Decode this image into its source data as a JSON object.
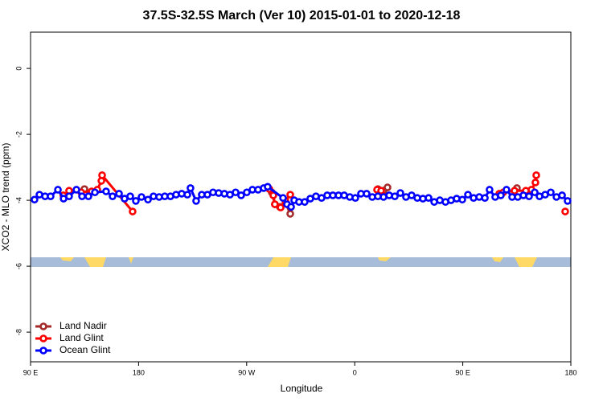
{
  "chart_data": {
    "type": "line",
    "title": "37.5S-32.5S March (Ver 10)   2015-01-01 to 2020-12-18",
    "x_label": "Longitude",
    "y_label": "XCO2 - MLO trend (ppm)",
    "xlim": [
      90,
      540
    ],
    "xticks": [
      {
        "value": 90,
        "label": "90 E"
      },
      {
        "value": 180,
        "label": "180"
      },
      {
        "value": 270,
        "label": "90 W"
      },
      {
        "value": 360,
        "label": "0"
      },
      {
        "value": 450,
        "label": "90 E"
      },
      {
        "value": 540,
        "label": "180"
      }
    ],
    "ylim": [
      -8.9,
      1.1
    ],
    "yticks": [
      0,
      -2,
      -4,
      -6,
      -8
    ],
    "legend": "bottom-left",
    "series": [
      {
        "name": "Land Nadir",
        "color": "#a52a2a",
        "x": [
          134.9,
          null,
          290.9,
          293.5,
          297.6,
          302.3,
          306.3,
          null,
          379.3,
          384.0,
          387.3,
          null,
          495.1
        ],
        "values": [
          -3.66,
          null,
          -3.76,
          -4.12,
          -4.2,
          -4.07,
          -4.41,
          null,
          -3.66,
          -3.71,
          -3.61,
          null,
          -3.63
        ]
      },
      {
        "name": "Land Glint",
        "color": "#ff0000",
        "x": [
          117.3,
          122.1,
          132.2,
          140.9,
          145.6,
          149.0,
          149.6,
          175.0,
          null,
          288.9,
          292.2,
          293.5,
          298.3,
          302.3,
          306.3,
          null,
          378.6,
          382.0,
          null,
          480.4,
          483.7,
          493.1,
          502.5,
          507.2,
          510.5,
          511.2,
          null,
          535.3
        ],
        "values": [
          -3.85,
          -3.71,
          -3.76,
          -3.73,
          -3.68,
          -3.41,
          -3.24,
          -4.34,
          null,
          -3.66,
          -3.85,
          -4.12,
          -4.22,
          -4.02,
          -3.83,
          null,
          -3.68,
          -3.71,
          null,
          -3.8,
          -3.76,
          -3.71,
          -3.71,
          -3.68,
          -3.46,
          -3.24,
          null,
          -4.34
        ]
      },
      {
        "name": "Ocean Glint",
        "color": "#0000ff",
        "x": [
          93.3,
          97.4,
          102.1,
          106.7,
          112.8,
          117.5,
          122.1,
          128.2,
          132.9,
          138.2,
          143.6,
          152.9,
          158.3,
          163.7,
          168.3,
          173.0,
          177.7,
          182.4,
          187.8,
          192.4,
          197.1,
          201.8,
          206.5,
          211.2,
          215.9,
          220.6,
          223.2,
          227.9,
          232.6,
          237.3,
          242.0,
          246.7,
          251.4,
          256.1,
          260.8,
          265.4,
          270.1,
          274.8,
          279.5,
          284.2,
          287.5,
          300.3,
          303.6,
          307.0,
          309.6,
          313.6,
          318.3,
          323.0,
          327.7,
          332.4,
          337.1,
          341.8,
          346.5,
          351.2,
          355.9,
          360.5,
          365.2,
          369.9,
          374.6,
          379.3,
          384.0,
          388.7,
          393.4,
          398.0,
          402.7,
          407.4,
          412.1,
          416.8,
          421.5,
          426.2,
          430.9,
          435.6,
          440.2,
          444.9,
          449.6,
          454.3,
          459.0,
          463.7,
          468.4,
          472.3,
          477.0,
          481.7,
          486.4,
          491.1,
          495.8,
          500.5,
          505.2,
          509.9,
          513.9,
          518.6,
          523.3,
          528.0,
          532.7,
          537.3
        ],
        "values": [
          -3.98,
          -3.83,
          -3.88,
          -3.88,
          -3.68,
          -3.95,
          -3.88,
          -3.68,
          -3.88,
          -3.88,
          -3.76,
          -3.73,
          -3.88,
          -3.8,
          -3.95,
          -3.88,
          -4.02,
          -3.9,
          -3.98,
          -3.88,
          -3.9,
          -3.88,
          -3.88,
          -3.83,
          -3.8,
          -3.83,
          -3.63,
          -4.02,
          -3.83,
          -3.83,
          -3.76,
          -3.78,
          -3.8,
          -3.83,
          -3.76,
          -3.85,
          -3.76,
          -3.68,
          -3.68,
          -3.63,
          -3.59,
          -3.93,
          -4.12,
          -4.2,
          -4.0,
          -4.05,
          -4.05,
          -3.95,
          -3.88,
          -3.93,
          -3.85,
          -3.85,
          -3.85,
          -3.85,
          -3.9,
          -3.93,
          -3.8,
          -3.8,
          -3.9,
          -3.88,
          -3.9,
          -3.85,
          -3.88,
          -3.78,
          -3.9,
          -3.85,
          -3.93,
          -3.95,
          -3.93,
          -4.05,
          -4.0,
          -4.05,
          -4.0,
          -3.95,
          -3.98,
          -3.83,
          -3.93,
          -3.9,
          -3.93,
          -3.68,
          -3.9,
          -3.85,
          -3.68,
          -3.9,
          -3.9,
          -3.85,
          -3.88,
          -3.76,
          -3.88,
          -3.83,
          -3.76,
          -3.9,
          -3.85,
          -4.02
        ]
      }
    ]
  }
}
